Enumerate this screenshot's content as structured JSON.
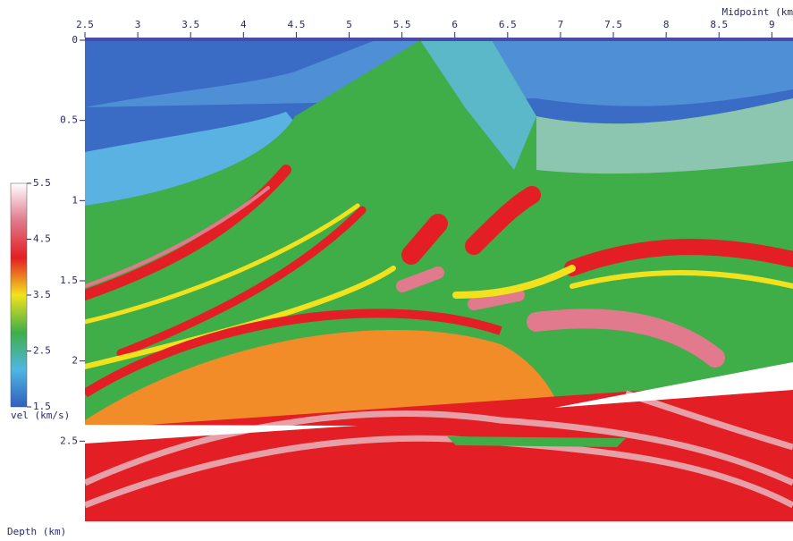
{
  "chart_data": {
    "type": "heatmap",
    "x_label": "Midpoint (km",
    "y_label": "Depth (km)",
    "xlim": [
      2.5,
      9.2
    ],
    "xticks": [
      2.5,
      3,
      3.5,
      4,
      4.5,
      5,
      5.5,
      6,
      6.5,
      7,
      7.5,
      8,
      8.5,
      9
    ],
    "ylim": [
      0,
      3
    ],
    "yticks": [
      0,
      0.5,
      1,
      1.5,
      2,
      2.5
    ],
    "y_inverted": true,
    "colorbar": {
      "label": "vel (km/s)",
      "lim": [
        1.5,
        5.5
      ],
      "ticks": [
        1.5,
        2.5,
        3.5,
        4.5,
        5.5
      ],
      "colors": [
        "#2f5fbf",
        "#4fb6e2",
        "#3fae49",
        "#f2e21e",
        "#e31e24",
        "#e07a8c",
        "#ffffff"
      ]
    }
  }
}
